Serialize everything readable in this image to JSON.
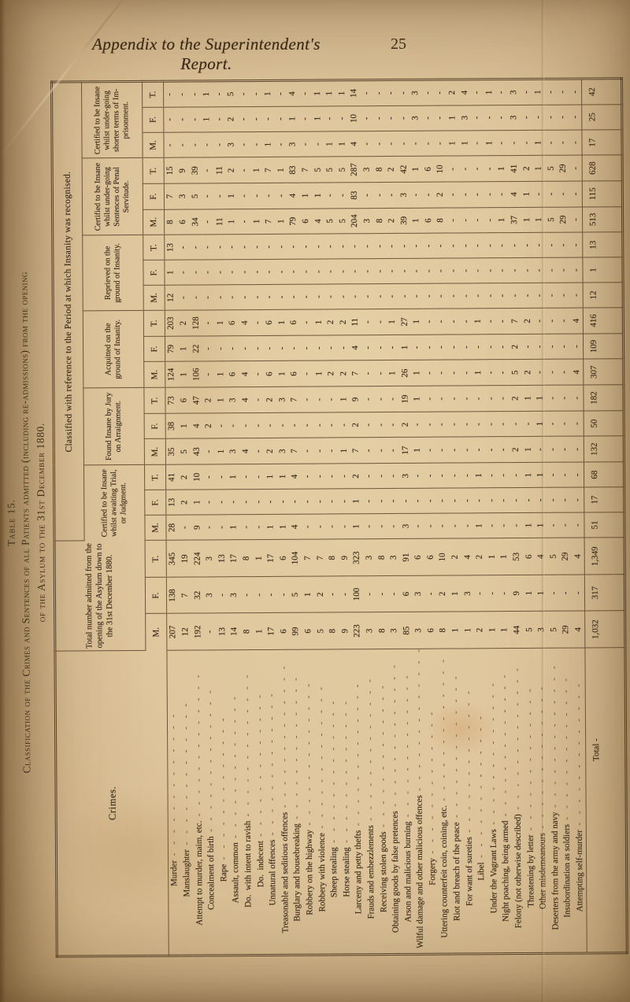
{
  "page": {
    "running_head": "Appendix to the Superintendent's Report.",
    "page_number": "25"
  },
  "table": {
    "table_no": "Table 15.",
    "title_line1": "Classification of the Crimes and Sentences of all Patients admitted (including re-admissions) from the opening",
    "title_line2": "of the Asylum to the 31st December 1880.",
    "crimes_header": "Crimes.",
    "classified_header": "Classified with reference to the Period at which Insanity was recognised.",
    "sub_headers": [
      "M.",
      "F.",
      "T."
    ],
    "groups": [
      {
        "title": "Total number admitted from the opening of the Asylum down to the 31st December 1880."
      },
      {
        "title": "Certified to be Insane whilst awaiting Trial, or Judgment."
      },
      {
        "title": "Found Insane by Jury on Arraignment."
      },
      {
        "title": "Acquitted on the ground of Insanity."
      },
      {
        "title": "Reprieved on the ground of Insanity."
      },
      {
        "title": "Certified to be Insane whilst under-going Sentences of Penal Servitude."
      },
      {
        "title": "Certified to be Insane whilst under-going shorter terms of Im-prisonment."
      }
    ],
    "rows": [
      {
        "crime": "Murder",
        "values": [
          "207",
          "138",
          "345",
          "28",
          "13",
          "41",
          "35",
          "38",
          "73",
          "124",
          "79",
          "203",
          "12",
          "1",
          "13",
          "8",
          "7",
          "15",
          "-",
          "-",
          "-"
        ]
      },
      {
        "crime": "Manslaughter",
        "values": [
          "12",
          "7",
          "19",
          "-",
          "2",
          "2",
          "5",
          "1",
          "6",
          "1",
          "1",
          "2",
          "-",
          "-",
          "-",
          "6",
          "3",
          "9",
          "-",
          "-",
          "-"
        ]
      },
      {
        "crime": "Attempt to murder, maim, etc.",
        "values": [
          "192",
          "32",
          "224",
          "9",
          "1",
          "10",
          "43",
          "4",
          "47",
          "106",
          "22",
          "128",
          "-",
          "-",
          "-",
          "34",
          "5",
          "39",
          "-",
          "-",
          "-"
        ]
      },
      {
        "crime": "Concealment of birth",
        "values": [
          "-",
          "3",
          "3",
          "-",
          "-",
          "-",
          "-",
          "2",
          "2",
          "-",
          "-",
          "-",
          "-",
          "-",
          "-",
          "-",
          "-",
          "-",
          "-",
          "1",
          "1"
        ]
      },
      {
        "crime": "Rape",
        "values": [
          "13",
          "-",
          "13",
          "-",
          "-",
          "-",
          "1",
          "-",
          "1",
          "1",
          "-",
          "1",
          "-",
          "-",
          "-",
          "11",
          "-",
          "11",
          "-",
          "-",
          "-"
        ]
      },
      {
        "crime": "Assault, common",
        "values": [
          "14",
          "3",
          "17",
          "1",
          "-",
          "1",
          "3",
          "-",
          "3",
          "6",
          "-",
          "6",
          "-",
          "-",
          "-",
          "1",
          "1",
          "2",
          "3",
          "2",
          "5"
        ]
      },
      {
        "crime": "  Do. with intent to ravish",
        "values": [
          "8",
          "-",
          "8",
          "-",
          "-",
          "-",
          "4",
          "-",
          "4",
          "4",
          "-",
          "4",
          "-",
          "-",
          "-",
          "-",
          "-",
          "-",
          "-",
          "-",
          "-"
        ]
      },
      {
        "crime": "  Do. indecent",
        "values": [
          "1",
          "-",
          "1",
          "-",
          "-",
          "-",
          "-",
          "-",
          "-",
          "-",
          "-",
          "-",
          "-",
          "-",
          "-",
          "1",
          "-",
          "1",
          "-",
          "-",
          "-"
        ]
      },
      {
        "crime": "Unnatural offences",
        "values": [
          "17",
          "-",
          "17",
          "1",
          "-",
          "1",
          "2",
          "-",
          "2",
          "6",
          "-",
          "6",
          "-",
          "-",
          "-",
          "7",
          "-",
          "7",
          "1",
          "-",
          "1"
        ]
      },
      {
        "crime": "Treasonable and seditious offences",
        "values": [
          "6",
          "-",
          "6",
          "1",
          "-",
          "1",
          "3",
          "-",
          "3",
          "1",
          "-",
          "1",
          "-",
          "-",
          "-",
          "1",
          "-",
          "1",
          "-",
          "-",
          "-"
        ]
      },
      {
        "crime": "Burglary and housebreaking",
        "values": [
          "99",
          "5",
          "104",
          "4",
          "-",
          "4",
          "7",
          "-",
          "7",
          "6",
          "-",
          "6",
          "-",
          "-",
          "-",
          "79",
          "4",
          "83",
          "3",
          "1",
          "4"
        ]
      },
      {
        "crime": "Robbery on the highway",
        "values": [
          "6",
          "1",
          "7",
          "-",
          "-",
          "-",
          "-",
          "-",
          "-",
          "-",
          "-",
          "-",
          "-",
          "-",
          "-",
          "6",
          "1",
          "7",
          "-",
          "-",
          "-"
        ]
      },
      {
        "crime": "Robbery with violence",
        "values": [
          "5",
          "2",
          "7",
          "-",
          "-",
          "-",
          "-",
          "-",
          "-",
          "1",
          "-",
          "1",
          "-",
          "-",
          "-",
          "4",
          "1",
          "5",
          "-",
          "1",
          "1"
        ]
      },
      {
        "crime": "Sheep stealing",
        "values": [
          "8",
          "-",
          "8",
          "-",
          "-",
          "-",
          "-",
          "-",
          "-",
          "2",
          "-",
          "2",
          "-",
          "-",
          "-",
          "5",
          "-",
          "5",
          "1",
          "-",
          "1"
        ]
      },
      {
        "crime": "Horse stealing",
        "values": [
          "9",
          "-",
          "9",
          "-",
          "-",
          "-",
          "1",
          "-",
          "1",
          "2",
          "-",
          "2",
          "-",
          "-",
          "-",
          "5",
          "-",
          "5",
          "1",
          "-",
          "1"
        ]
      },
      {
        "crime": "Larceny and petty thefts",
        "values": [
          "223",
          "100",
          "323",
          "1",
          "1",
          "2",
          "7",
          "2",
          "9",
          "7",
          "4",
          "11",
          "-",
          "-",
          "-",
          "204",
          "83",
          "287",
          "4",
          "10",
          "14"
        ]
      },
      {
        "crime": "Frauds and embezzlements",
        "values": [
          "3",
          "-",
          "3",
          "-",
          "-",
          "-",
          "-",
          "-",
          "-",
          "-",
          "-",
          "-",
          "-",
          "-",
          "-",
          "3",
          "-",
          "3",
          "-",
          "-",
          "-"
        ]
      },
      {
        "crime": "Receiving stolen goods",
        "values": [
          "8",
          "-",
          "8",
          "-",
          "-",
          "-",
          "-",
          "-",
          "-",
          "-",
          "-",
          "-",
          "-",
          "-",
          "-",
          "8",
          "-",
          "8",
          "-",
          "-",
          "-"
        ]
      },
      {
        "crime": "Obtaining goods by false pretences",
        "values": [
          "3",
          "-",
          "3",
          "-",
          "-",
          "-",
          "-",
          "-",
          "-",
          "1",
          "-",
          "1",
          "-",
          "-",
          "-",
          "2",
          "-",
          "2",
          "-",
          "-",
          "-"
        ]
      },
      {
        "crime": "Arson and malicious burning",
        "values": [
          "85",
          "6",
          "91",
          "3",
          "-",
          "3",
          "17",
          "2",
          "19",
          "26",
          "1",
          "27",
          "-",
          "-",
          "-",
          "39",
          "3",
          "42",
          "-",
          "-",
          "-"
        ]
      },
      {
        "crime": "Wilful damage and other malicious offences",
        "values": [
          "3",
          "3",
          "6",
          "-",
          "-",
          "-",
          "1",
          "-",
          "1",
          "1",
          "-",
          "1",
          "-",
          "-",
          "-",
          "1",
          "-",
          "1",
          "-",
          "3",
          "3"
        ]
      },
      {
        "crime": "Forgery",
        "values": [
          "6",
          "-",
          "6",
          "-",
          "-",
          "-",
          "-",
          "-",
          "-",
          "-",
          "-",
          "-",
          "-",
          "-",
          "-",
          "6",
          "-",
          "6",
          "-",
          "-",
          "-"
        ]
      },
      {
        "crime": "Uttering counterfeit coin, coining, etc.",
        "values": [
          "8",
          "2",
          "10",
          "-",
          "-",
          "-",
          "-",
          "-",
          "-",
          "-",
          "-",
          "-",
          "-",
          "-",
          "-",
          "8",
          "2",
          "10",
          "-",
          "-",
          "-"
        ]
      },
      {
        "crime": "Riot and breach of the peace",
        "values": [
          "1",
          "1",
          "2",
          "-",
          "-",
          "-",
          "-",
          "-",
          "-",
          "-",
          "-",
          "-",
          "-",
          "-",
          "-",
          "-",
          "-",
          "-",
          "1",
          "1",
          "2"
        ]
      },
      {
        "crime": "For want of sureties",
        "values": [
          "1",
          "3",
          "4",
          "-",
          "-",
          "-",
          "-",
          "-",
          "-",
          "-",
          "-",
          "-",
          "-",
          "-",
          "-",
          "-",
          "-",
          "-",
          "1",
          "3",
          "4"
        ]
      },
      {
        "crime": "Libel",
        "values": [
          "2",
          "-",
          "2",
          "1",
          "-",
          "1",
          "-",
          "-",
          "-",
          "1",
          "-",
          "1",
          "-",
          "-",
          "-",
          "-",
          "-",
          "-",
          "-",
          "-",
          "-"
        ]
      },
      {
        "crime": "Under the Vagrant Laws",
        "values": [
          "1",
          "-",
          "1",
          "-",
          "-",
          "-",
          "-",
          "-",
          "-",
          "-",
          "-",
          "-",
          "-",
          "-",
          "-",
          "-",
          "-",
          "-",
          "1",
          "-",
          "1"
        ]
      },
      {
        "crime": "Night poaching, being armed",
        "values": [
          "1",
          "-",
          "1",
          "-",
          "-",
          "-",
          "-",
          "-",
          "-",
          "-",
          "-",
          "-",
          "-",
          "-",
          "-",
          "1",
          "-",
          "1",
          "-",
          "-",
          "-"
        ]
      },
      {
        "crime": "Felony (not otherwise described)",
        "values": [
          "44",
          "9",
          "53",
          "-",
          "-",
          "-",
          "2",
          "-",
          "2",
          "5",
          "2",
          "7",
          "-",
          "-",
          "-",
          "37",
          "4",
          "41",
          "-",
          "3",
          "3"
        ]
      },
      {
        "crime": "Threatening by letter",
        "values": [
          "5",
          "1",
          "6",
          "1",
          "-",
          "1",
          "1",
          "-",
          "1",
          "2",
          "-",
          "2",
          "-",
          "-",
          "-",
          "1",
          "1",
          "2",
          "-",
          "-",
          "-"
        ]
      },
      {
        "crime": "Other misdemeanours",
        "values": [
          "3",
          "1",
          "4",
          "1",
          "-",
          "1",
          "-",
          "1",
          "1",
          "-",
          "-",
          "-",
          "-",
          "-",
          "-",
          "1",
          "-",
          "1",
          "1",
          "-",
          "1"
        ]
      },
      {
        "crime": "Deserters from the army and navy",
        "values": [
          "5",
          "-",
          "5",
          "-",
          "-",
          "-",
          "-",
          "-",
          "-",
          "-",
          "-",
          "-",
          "-",
          "-",
          "-",
          "5",
          "-",
          "5",
          "-",
          "-",
          "-"
        ]
      },
      {
        "crime": "Insubordination as soldiers",
        "values": [
          "29",
          "-",
          "29",
          "-",
          "-",
          "-",
          "-",
          "-",
          "-",
          "-",
          "-",
          "-",
          "-",
          "-",
          "-",
          "29",
          "-",
          "29",
          "-",
          "-",
          "-"
        ]
      },
      {
        "crime": "Attempting self-murder",
        "values": [
          "4",
          "-",
          "4",
          "-",
          "-",
          "-",
          "-",
          "-",
          "-",
          "4",
          "-",
          "4",
          "-",
          "-",
          "-",
          "-",
          "-",
          "-",
          "-",
          "-",
          "-"
        ]
      }
    ],
    "total_row": {
      "label": "Total -",
      "values": [
        "1,032",
        "317",
        "1,349",
        "51",
        "17",
        "68",
        "132",
        "50",
        "182",
        "307",
        "109",
        "416",
        "12",
        "1",
        "13",
        "513",
        "115",
        "628",
        "17",
        "25",
        "42"
      ]
    }
  }
}
